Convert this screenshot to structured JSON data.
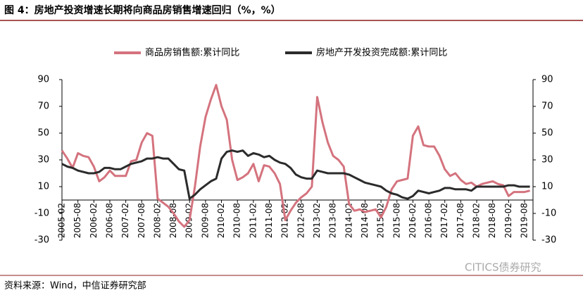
{
  "chart_data": {
    "type": "line",
    "title": "图 4：房地产投资增速长期将向商品房销售增速回归（%，%）",
    "source": "资料来源：Wind，中信证券研究部",
    "watermark": "CITICS债券研究",
    "categories": [
      "2005-02",
      null,
      null,
      "2005-08",
      null,
      null,
      "2006-02",
      null,
      null,
      "2006-08",
      null,
      null,
      "2007-02",
      null,
      null,
      "2007-08",
      null,
      null,
      "2008-02",
      null,
      null,
      "2008-08",
      null,
      null,
      "2009-02",
      null,
      null,
      "2009-08",
      null,
      null,
      "2010-02",
      null,
      null,
      "2010-08",
      null,
      null,
      "2011-02",
      null,
      null,
      "2011-08",
      null,
      null,
      "2012-02",
      null,
      null,
      "2012-08",
      null,
      null,
      "2013-02",
      null,
      null,
      "2013-08",
      null,
      null,
      "2014-02",
      null,
      null,
      "2014-08",
      null,
      null,
      "2015-02",
      null,
      null,
      "2015-08",
      null,
      null,
      "2016-02",
      null,
      null,
      "2016-08",
      null,
      null,
      "2017-02",
      null,
      null,
      "2017-08",
      null,
      null,
      "2018-02",
      null,
      null,
      "2018-08",
      null,
      null,
      "2019-02",
      null,
      null,
      "2019-08",
      null
    ],
    "series": [
      {
        "name": "商品房销售额:累计同比",
        "color": "#d4737e",
        "values": [
          37,
          31,
          24,
          35,
          33,
          32,
          25,
          14,
          17,
          22,
          18,
          18,
          18,
          29,
          30,
          43,
          50,
          48,
          1,
          -2,
          -5,
          -10,
          -16,
          -20,
          -15,
          10,
          40,
          62,
          75,
          86,
          70,
          60,
          30,
          15,
          17,
          20,
          27,
          14,
          26,
          25,
          20,
          12,
          -15,
          -8,
          -2,
          2,
          5,
          10,
          77,
          58,
          43,
          33,
          30,
          25,
          -3,
          -8,
          -7,
          -9,
          -8,
          -7,
          -13,
          -5,
          8,
          14,
          15,
          16,
          48,
          55,
          41,
          40,
          40,
          33,
          23,
          18,
          20,
          15,
          12,
          13,
          10,
          12,
          13,
          14,
          12,
          11,
          3,
          6,
          6,
          6,
          7
        ]
      },
      {
        "name": "房地产开发投资完成额:累计同比",
        "color": "#2b2b2b",
        "axis": "y2",
        "values": [
          27,
          25,
          24,
          22,
          21,
          20,
          20,
          21,
          24,
          24,
          23,
          23,
          25,
          27,
          28,
          29,
          31,
          31,
          32,
          31,
          31,
          27,
          23,
          22,
          1,
          4,
          8,
          11,
          14,
          16,
          31,
          36,
          37,
          36,
          37,
          33,
          35,
          34,
          32,
          33,
          30,
          28,
          27,
          24,
          19,
          17,
          16,
          16,
          22,
          21,
          20,
          20,
          20,
          20,
          19,
          17,
          15,
          13,
          12,
          11,
          10,
          7,
          5,
          4,
          2,
          1,
          3,
          7,
          6,
          5,
          6,
          7,
          9,
          9,
          8,
          8,
          8,
          7,
          10,
          10,
          10,
          10,
          10,
          10,
          11,
          11,
          10,
          10,
          10
        ]
      }
    ],
    "ylim": [
      -30,
      90
    ],
    "yticks": [
      -30,
      -10,
      10,
      30,
      50,
      70,
      90
    ],
    "y2lim": [
      -30,
      90
    ],
    "y2ticks": [
      -30,
      -10,
      10,
      30,
      50,
      70,
      90
    ],
    "legend": "top"
  }
}
